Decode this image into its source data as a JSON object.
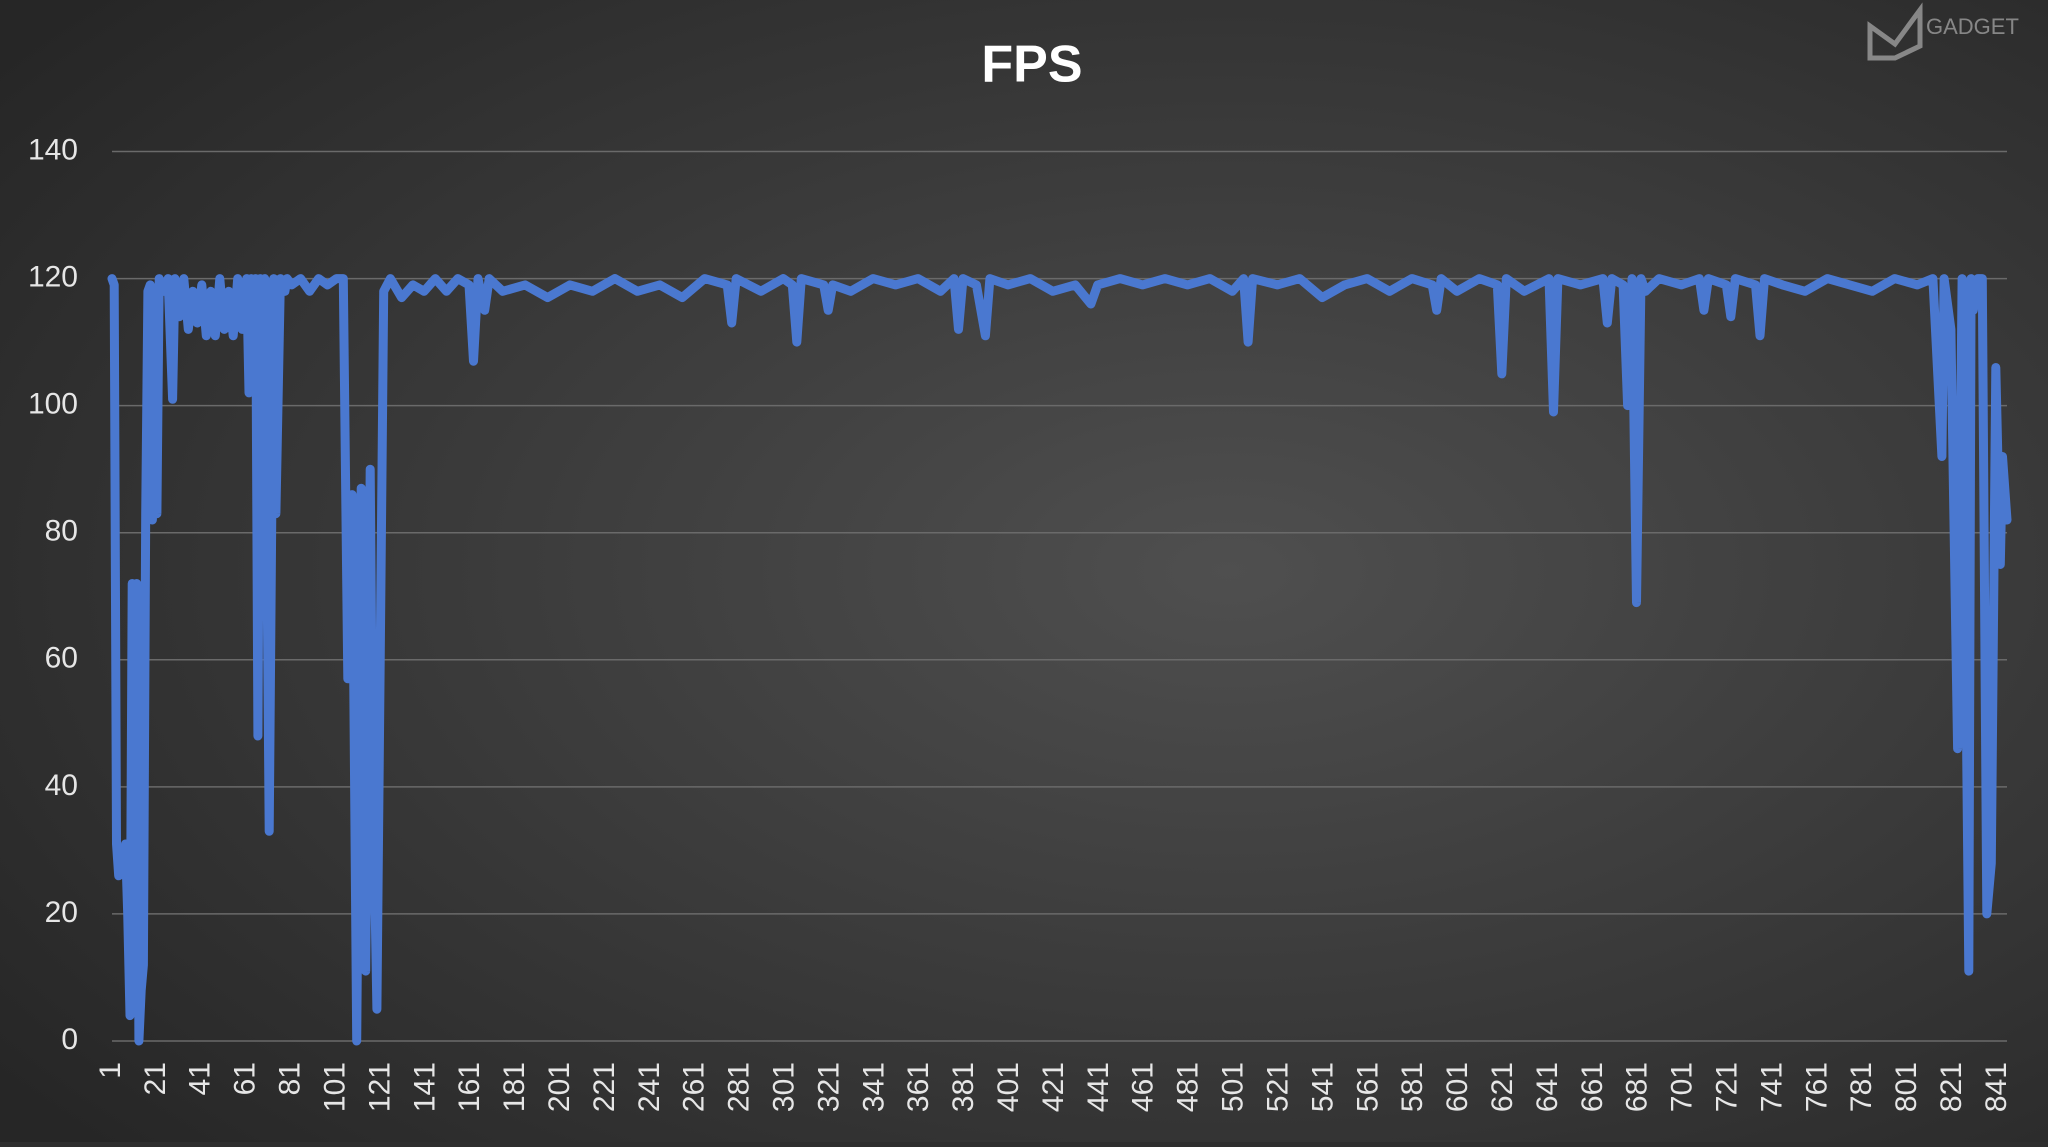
{
  "chart_data": {
    "type": "line",
    "title": "FPS",
    "watermark": "GADGET",
    "x": [
      1,
      2,
      3,
      4,
      5,
      6,
      7,
      8,
      9,
      10,
      11,
      12,
      13,
      14,
      15,
      16,
      17,
      18,
      19,
      20,
      21,
      22,
      24,
      26,
      28,
      29,
      31,
      33,
      35,
      37,
      39,
      41,
      43,
      45,
      47,
      49,
      51,
      53,
      55,
      57,
      59,
      61,
      62,
      63,
      64,
      65,
      66,
      67,
      68,
      69,
      71,
      73,
      74,
      76,
      78,
      79,
      81,
      85,
      89,
      93,
      97,
      101,
      104,
      106,
      108,
      110,
      112,
      114,
      116,
      117,
      119,
      122,
      125,
      130,
      135,
      140,
      145,
      150,
      155,
      160,
      162,
      164,
      167,
      169,
      175,
      185,
      195,
      205,
      215,
      225,
      235,
      245,
      255,
      265,
      275,
      277,
      279,
      290,
      300,
      304,
      306,
      308,
      318,
      320,
      322,
      330,
      340,
      350,
      360,
      370,
      376,
      378,
      380,
      386,
      390,
      392,
      400,
      410,
      420,
      430,
      437,
      440,
      450,
      460,
      470,
      480,
      490,
      500,
      505,
      507,
      509,
      520,
      530,
      540,
      550,
      560,
      570,
      580,
      589,
      591,
      593,
      600,
      610,
      618,
      620,
      622,
      630,
      641,
      643,
      645,
      655,
      665,
      667,
      669,
      674,
      676,
      678,
      680,
      682,
      684,
      690,
      700,
      708,
      710,
      712,
      720,
      722,
      724,
      733,
      735,
      737,
      745,
      755,
      765,
      775,
      785,
      795,
      805,
      812,
      816,
      817,
      820,
      823,
      825,
      828,
      829,
      830,
      832,
      834,
      836,
      838,
      840,
      842,
      843,
      845
    ],
    "series": [
      {
        "name": "FPS",
        "color": "#4a78d0",
        "values": [
          120,
          119,
          31,
          26,
          30,
          27,
          31,
          20,
          4,
          72,
          12,
          72,
          0,
          8,
          12,
          83,
          118,
          119,
          82,
          118,
          83,
          120,
          118,
          120,
          101,
          120,
          114,
          120,
          112,
          118,
          113,
          119,
          111,
          118,
          111,
          120,
          112,
          118,
          111,
          120,
          112,
          120,
          102,
          120,
          104,
          120,
          48,
          120,
          118,
          120,
          33,
          120,
          83,
          120,
          118,
          120,
          119,
          120,
          118,
          120,
          119,
          120,
          120,
          57,
          86,
          0,
          87,
          11,
          90,
          45,
          5,
          118,
          120,
          117,
          119,
          118,
          120,
          118,
          120,
          119,
          107,
          120,
          115,
          120,
          118,
          119,
          117,
          119,
          118,
          120,
          118,
          119,
          117,
          120,
          119,
          113,
          120,
          118,
          120,
          119,
          110,
          120,
          119,
          115,
          119,
          118,
          120,
          119,
          120,
          118,
          120,
          112,
          120,
          119,
          111,
          120,
          119,
          120,
          118,
          119,
          116,
          119,
          120,
          119,
          120,
          119,
          120,
          118,
          120,
          110,
          120,
          119,
          120,
          117,
          119,
          120,
          118,
          120,
          119,
          115,
          120,
          118,
          120,
          119,
          105,
          120,
          118,
          120,
          99,
          120,
          119,
          120,
          113,
          120,
          119,
          100,
          120,
          69,
          120,
          118,
          120,
          119,
          120,
          115,
          120,
          119,
          114,
          120,
          119,
          111,
          120,
          119,
          118,
          120,
          119,
          118,
          120,
          119,
          120,
          92,
          120,
          112,
          46,
          120,
          11,
          120,
          115,
          120,
          120,
          20,
          28,
          106,
          75,
          92,
          82
        ]
      }
    ],
    "xlim": [
      1,
      845
    ],
    "xticks": [
      1,
      21,
      41,
      61,
      81,
      101,
      121,
      141,
      161,
      181,
      201,
      221,
      241,
      261,
      281,
      301,
      321,
      341,
      361,
      381,
      401,
      421,
      441,
      461,
      481,
      501,
      521,
      541,
      561,
      581,
      601,
      621,
      641,
      661,
      681,
      701,
      721,
      741,
      761,
      781,
      801,
      821,
      841
    ],
    "ylim": [
      0,
      140
    ],
    "yticks": [
      0,
      20,
      40,
      60,
      80,
      100,
      120,
      140
    ],
    "grid": true
  }
}
